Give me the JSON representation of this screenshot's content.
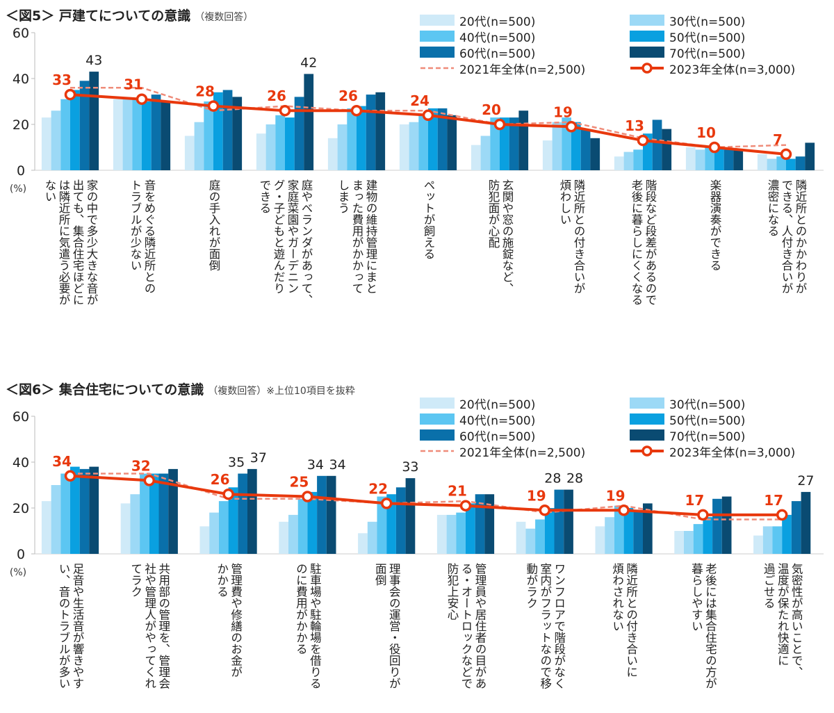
{
  "colors": {
    "20s": "#cfeaf8",
    "30s": "#9cd9f6",
    "40s": "#5cc6f2",
    "50s": "#0aa0e0",
    "60s": "#0a70aa",
    "70s": "#0a4b72",
    "y2021": "#ef8c7a",
    "y2023": "#e8380d"
  },
  "legend": [
    "20代(n=500)",
    "30代(n=500)",
    "40代(n=500)",
    "50代(n=500)",
    "60代(n=500)",
    "70代(n=500)",
    "2021年全体(n=2,500)",
    "2023年全体(n=3,000)"
  ],
  "chart_data": [
    {
      "type": "bar",
      "title": "＜図5＞ 戸建てについての意識",
      "subtitle": "（複数回答）",
      "ylabel": "(%)",
      "ylim": [
        0,
        60
      ],
      "yticks": [
        "0",
        "20",
        "40",
        "60"
      ],
      "categories": [
        "家の中で多少大きな音が\n出ても、集合住宅ほどに\nは隣近所に気遣う必要が\nない",
        "音をめぐる隣近所との\nトラブルが少ない",
        "庭の手入れが面倒",
        "庭やベランダがあって、\n家庭菜園やガーデニン\nグ・子どもと遊んだり\nできる",
        "建物の維持管理にまと\nまった費用がかかって\nしまう",
        "ペットが飼える",
        "玄関や窓の施錠など、\n防犯面が心配",
        "隣近所との付き合いが\n煩わしい",
        "階段など段差があるので\n老後に暮らしにくくなる",
        "楽器演奏ができる",
        "隣近所とのかかわりが\nできる、人付き合いが\n濃密になる"
      ],
      "series": [
        {
          "name": "20代(n=500)",
          "values": [
            23,
            31,
            15,
            16,
            14,
            20,
            11,
            13,
            6,
            10,
            7
          ]
        },
        {
          "name": "30代(n=500)",
          "values": [
            26,
            31,
            21,
            20,
            20,
            21,
            15,
            21,
            8,
            9,
            5
          ]
        },
        {
          "name": "40代(n=500)",
          "values": [
            31,
            31,
            30,
            24,
            27,
            24,
            23,
            23,
            9,
            10,
            6
          ]
        },
        {
          "name": "50代(n=500)",
          "values": [
            35,
            30,
            34,
            23,
            28,
            27,
            23,
            21,
            16,
            10,
            5
          ]
        },
        {
          "name": "60代(n=500)",
          "values": [
            39,
            33,
            35,
            32,
            33,
            27,
            23,
            18,
            22,
            9,
            6
          ]
        },
        {
          "name": "70代(n=500)",
          "values": [
            43,
            30,
            32,
            42,
            34,
            24,
            26,
            14,
            18,
            9,
            12
          ]
        },
        {
          "name": "2021年全体(n=2,500)",
          "type": "line-dashed",
          "values": [
            36,
            36,
            26,
            28,
            26,
            26,
            20,
            21,
            14,
            10,
            11
          ]
        },
        {
          "name": "2023年全体(n=3,000)",
          "type": "line",
          "values": [
            33,
            31,
            28,
            26,
            26,
            24,
            20,
            19,
            13,
            10,
            7
          ]
        }
      ],
      "bar_labels": [
        {
          "category": 0,
          "series": 5,
          "text": "43"
        },
        {
          "category": 3,
          "series": 5,
          "text": "42"
        }
      ],
      "line_labels": [
        "33",
        "31",
        "28",
        "26",
        "26",
        "24",
        "20",
        "19",
        "13",
        "10",
        "7"
      ]
    },
    {
      "type": "bar",
      "title": "＜図6＞ 集合住宅についての意識",
      "subtitle": "（複数回答）※上位10項目を抜粋",
      "ylabel": "(%)",
      "ylim": [
        0,
        60
      ],
      "yticks": [
        "0",
        "20",
        "40",
        "60"
      ],
      "categories": [
        "足音や生活音が響きやす\nい、音のトラブルが多い",
        "共用部の管理を、管理会\n社や管理人がやってくれ\nてラク",
        "管理費や修繕のお金が\nかかる",
        "駐車場や駐輪場を借りる\nのに費用がかかる",
        "理事会の運営・役回りが\n面倒",
        "管理員や居住者の目があ\nる・オートロックなどで\n防犯上安心",
        "ワンフロアで階段がなく\n室内がフラットなので移\n動がラク",
        "隣近所との付き合いに\n煩わされない",
        "老後には集合住宅の方が\n暮らしやすい",
        "気密性が高いことで、\n温度が保たれ快適に\n過ごせる"
      ],
      "series": [
        {
          "name": "20代(n=500)",
          "values": [
            23,
            22,
            12,
            14,
            9,
            17,
            14,
            12,
            10,
            8
          ]
        },
        {
          "name": "30代(n=500)",
          "values": [
            30,
            26,
            18,
            17,
            14,
            17,
            11,
            16,
            10,
            12
          ]
        },
        {
          "name": "40代(n=500)",
          "values": [
            35,
            35,
            23,
            24,
            25,
            18,
            15,
            21,
            13,
            12
          ]
        },
        {
          "name": "50代(n=500)",
          "values": [
            38,
            35,
            29,
            27,
            26,
            22,
            20,
            20,
            16,
            17
          ]
        },
        {
          "name": "60代(n=500)",
          "values": [
            37,
            35,
            35,
            34,
            29,
            26,
            28,
            19,
            24,
            23
          ]
        },
        {
          "name": "70代(n=500)",
          "values": [
            38,
            37,
            37,
            34,
            33,
            26,
            28,
            22,
            25,
            27
          ]
        },
        {
          "name": "2021年全体(n=2,500)",
          "type": "line-dashed",
          "values": [
            35,
            35,
            24,
            24,
            22,
            23,
            18,
            21,
            15,
            15
          ]
        },
        {
          "name": "2023年全体(n=3,000)",
          "type": "line",
          "values": [
            34,
            32,
            26,
            25,
            22,
            21,
            19,
            19,
            17,
            17
          ]
        }
      ],
      "bar_labels": [
        {
          "category": 2,
          "series": 4,
          "text": "35"
        },
        {
          "category": 2,
          "series": 5,
          "text": "37"
        },
        {
          "category": 3,
          "series": 4,
          "text": "34"
        },
        {
          "category": 3,
          "series": 5,
          "text": "34"
        },
        {
          "category": 4,
          "series": 5,
          "text": "33"
        },
        {
          "category": 6,
          "series": 4,
          "text": "28"
        },
        {
          "category": 6,
          "series": 5,
          "text": "28"
        },
        {
          "category": 9,
          "series": 5,
          "text": "27"
        }
      ],
      "line_labels": [
        "34",
        "32",
        "26",
        "25",
        "22",
        "21",
        "19",
        "19",
        "17",
        "17"
      ]
    }
  ]
}
